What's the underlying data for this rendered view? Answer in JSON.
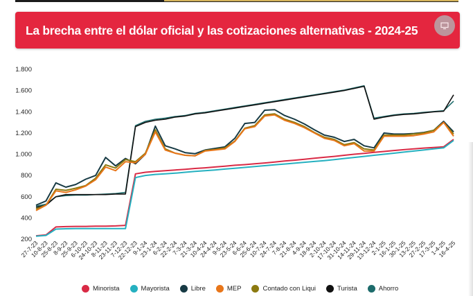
{
  "header": {
    "title": "La brecha entre el dólar oficial y las cotizaciones alternativas - 2024-25",
    "screen_icon": "monitor-icon"
  },
  "colors": {
    "header_bg": "#e4263f",
    "Minorista": "#d92a45",
    "Mayorista": "#25b0c0",
    "Libre": "#173a44",
    "MEP": "#e8761a",
    "Contado con Liqui": "#8c7a10",
    "Turista": "#111111",
    "Ahorro": "#1d6b6b"
  },
  "chart_data": {
    "type": "line",
    "title": "La brecha entre el dólar oficial y las cotizaciones alternativas - 2024-25",
    "xlabel": "",
    "ylabel": "",
    "ylim": [
      200,
      1800
    ],
    "yticks": [
      200,
      400,
      600,
      800,
      1000,
      1200,
      1400,
      1600,
      1800
    ],
    "ytick_labels": [
      "200",
      "400",
      "600",
      "800",
      "1.000",
      "1.200",
      "1.400",
      "1.600",
      "1.800"
    ],
    "grid": false,
    "legend_position": "bottom",
    "x": [
      "27-7-23",
      "10-8-23",
      "25-8-23",
      "8-9-23",
      "25-9-23",
      "6-10-23",
      "24-10-23",
      "8-11-23",
      "23-11-23",
      "7-12-23",
      "22-12-23",
      "9-1-24",
      "23-1-24",
      "6-2-24",
      "22-2-24",
      "7-3-24",
      "21-3-24",
      "10-4-24",
      "24-4-24",
      "9-5-24",
      "23-5-24",
      "6-6-24",
      "25-6-24",
      "10-7-24",
      "24-7-24",
      "7-8-24",
      "21-8-24",
      "4-9-24",
      "18-9-24",
      "2-10-24",
      "17-10-24",
      "31-10-24",
      "14-11-24",
      "29-11-24",
      "13-12-24",
      "2-1-25",
      "16-1-25",
      "30-1-25",
      "13-2-25",
      "27-2-25",
      "17-3-25",
      "1-4-25",
      "16-4-25"
    ],
    "series": [
      {
        "name": "Minorista",
        "values": [
          232,
          240,
          315,
          318,
          320,
          320,
          322,
          323,
          325,
          330,
          815,
          830,
          838,
          845,
          852,
          858,
          866,
          872,
          880,
          888,
          896,
          902,
          910,
          918,
          927,
          936,
          944,
          952,
          962,
          971,
          980,
          990,
          1000,
          1008,
          1018,
          1026,
          1035,
          1043,
          1050,
          1058,
          1064,
          1070,
          1140
        ]
      },
      {
        "name": "Mayorista",
        "values": [
          228,
          235,
          295,
          298,
          300,
          300,
          300,
          300,
          300,
          300,
          780,
          800,
          810,
          815,
          822,
          830,
          838,
          845,
          852,
          860,
          868,
          876,
          884,
          892,
          900,
          908,
          916,
          924,
          932,
          940,
          950,
          960,
          970,
          980,
          990,
          1000,
          1010,
          1020,
          1030,
          1040,
          1050,
          1060,
          1130
        ]
      },
      {
        "name": "Libre",
        "values": [
          520,
          560,
          730,
          690,
          715,
          765,
          800,
          970,
          890,
          960,
          910,
          1000,
          1265,
          1080,
          1050,
          1015,
          1005,
          1040,
          1055,
          1070,
          1150,
          1290,
          1300,
          1415,
          1420,
          1365,
          1330,
          1285,
          1230,
          1180,
          1160,
          1120,
          1140,
          1080,
          1060,
          1200,
          1190,
          1190,
          1195,
          1205,
          1225,
          1310,
          1210
        ]
      },
      {
        "name": "MEP",
        "values": [
          470,
          520,
          655,
          640,
          665,
          700,
          760,
          880,
          845,
          930,
          920,
          1000,
          1210,
          1040,
          1010,
          990,
          985,
          1030,
          1040,
          1050,
          1120,
          1240,
          1260,
          1360,
          1370,
          1320,
          1290,
          1250,
          1200,
          1150,
          1130,
          1080,
          1100,
          1030,
          1030,
          1170,
          1170,
          1170,
          1175,
          1190,
          1210,
          1300,
          1170
        ]
      },
      {
        "name": "Contado con Liqui",
        "values": [
          485,
          520,
          670,
          660,
          680,
          705,
          775,
          900,
          870,
          950,
          930,
          1010,
          1230,
          1050,
          1010,
          990,
          985,
          1035,
          1045,
          1060,
          1125,
          1245,
          1270,
          1370,
          1380,
          1330,
          1300,
          1260,
          1205,
          1160,
          1140,
          1090,
          1110,
          1050,
          1040,
          1180,
          1180,
          1180,
          1190,
          1200,
          1225,
          1300,
          1190
        ]
      },
      {
        "name": "Turista",
        "values": [
          500,
          520,
          600,
          620,
          620,
          620,
          620,
          620,
          625,
          625,
          1260,
          1300,
          1320,
          1330,
          1350,
          1360,
          1380,
          1390,
          1405,
          1420,
          1435,
          1450,
          1465,
          1480,
          1495,
          1510,
          1525,
          1540,
          1555,
          1570,
          1585,
          1600,
          1620,
          1640,
          1330,
          1350,
          1365,
          1375,
          1380,
          1390,
          1400,
          1405,
          1560
        ]
      },
      {
        "name": "Ahorro",
        "values": [
          510,
          530,
          600,
          610,
          615,
          615,
          620,
          625,
          630,
          640,
          1270,
          1310,
          1330,
          1340,
          1355,
          1365,
          1385,
          1395,
          1410,
          1425,
          1440,
          1455,
          1470,
          1485,
          1500,
          1515,
          1530,
          1545,
          1560,
          1575,
          1590,
          1605,
          1625,
          1645,
          1340,
          1355,
          1370,
          1380,
          1385,
          1395,
          1402,
          1410,
          1500
        ]
      }
    ]
  }
}
